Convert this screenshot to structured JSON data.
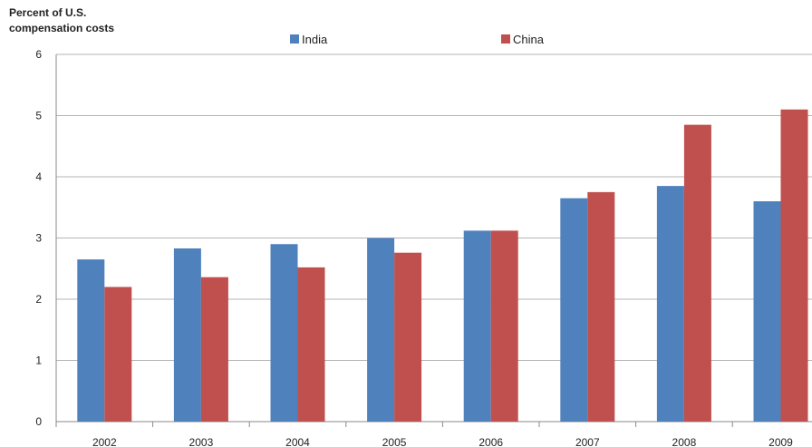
{
  "chart_data": {
    "type": "bar",
    "title": "",
    "xlabel": "",
    "ylabel": "Percent of U.S.\ncompensation costs",
    "categories": [
      "2002",
      "2003",
      "2004",
      "2005",
      "2006",
      "2007",
      "2008",
      "2009"
    ],
    "series": [
      {
        "name": "India",
        "color": "#4f81bd",
        "values": [
          2.65,
          2.83,
          2.9,
          3.0,
          3.12,
          3.65,
          3.85,
          3.6
        ]
      },
      {
        "name": "China",
        "color": "#c0504d",
        "values": [
          2.2,
          2.36,
          2.52,
          2.76,
          3.12,
          3.75,
          4.85,
          5.1
        ]
      }
    ],
    "ylim": [
      0,
      6
    ],
    "yticks": [
      0,
      1,
      2,
      3,
      4,
      5,
      6
    ],
    "grid": true,
    "legend_position": "top-center"
  }
}
